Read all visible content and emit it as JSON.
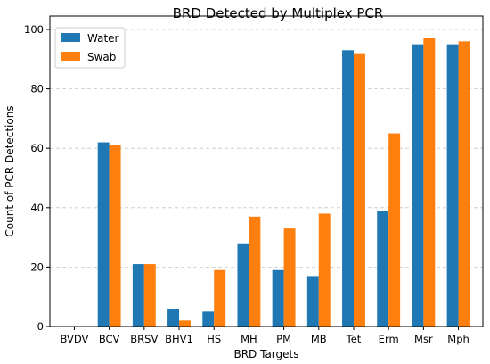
{
  "chart_data": {
    "type": "bar",
    "title": "BRD Detected by Multiplex PCR",
    "xlabel": "BRD Targets",
    "ylabel": "Count of PCR Detections",
    "categories": [
      "BVDV",
      "BCV",
      "BRSV",
      "BHV1",
      "HS",
      "MH",
      "PM",
      "MB",
      "Tet",
      "Erm",
      "Msr",
      "Mph"
    ],
    "series": [
      {
        "name": "Water",
        "color": "#1f77b4",
        "values": [
          0,
          62,
          21,
          6,
          5,
          28,
          19,
          17,
          93,
          39,
          95,
          95
        ]
      },
      {
        "name": "Swab",
        "color": "#ff7f0e",
        "values": [
          0,
          61,
          21,
          2,
          19,
          37,
          33,
          38,
          92,
          65,
          97,
          96
        ]
      }
    ],
    "ylim": [
      0,
      100
    ],
    "yticks": [
      0,
      20,
      40,
      60,
      80,
      100
    ],
    "grid": "y-dashed",
    "legend_position": "top-left"
  }
}
